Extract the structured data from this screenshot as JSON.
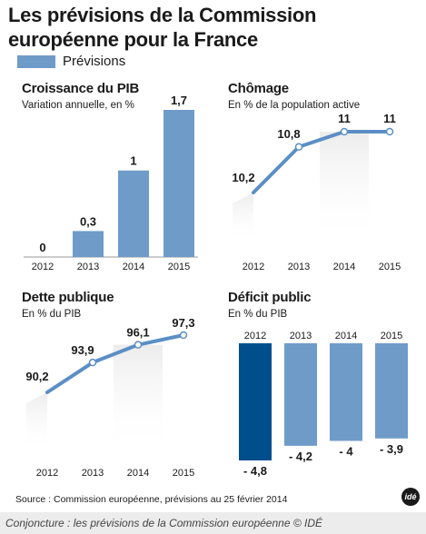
{
  "header": {
    "title": "Les prévisions de la Commission européenne pour la France",
    "legend_label": "Prévisions"
  },
  "colors": {
    "forecast_bar": "#6f9bc9",
    "line": "#5b8ec5",
    "current_bar": "#004f8c",
    "shade": "#ececec"
  },
  "chart_data": [
    {
      "type": "bar",
      "title": "Croissance du PIB",
      "subtitle": "Variation annuelle, en %",
      "categories": [
        "2012",
        "2013",
        "2014",
        "2015"
      ],
      "values": [
        0,
        0.3,
        1,
        1.7
      ],
      "value_labels": [
        "0",
        "0,3",
        "1",
        "1,7"
      ],
      "forecast": [
        false,
        true,
        true,
        true
      ],
      "ylim": [
        0,
        1.7
      ]
    },
    {
      "type": "line",
      "title": "Chômage",
      "subtitle": "En % de la population active",
      "categories": [
        "2012",
        "2013",
        "2014",
        "2015"
      ],
      "values": [
        10.2,
        10.8,
        11,
        11
      ],
      "value_labels": [
        "10,2",
        "10,8",
        "11",
        "11"
      ],
      "forecast": [
        false,
        true,
        true,
        true
      ],
      "ylim": [
        9.5,
        11.25
      ]
    },
    {
      "type": "line",
      "title": "Dette publique",
      "subtitle": "En % du PIB",
      "categories": [
        "2012",
        "2013",
        "2014",
        "2015"
      ],
      "values": [
        90.2,
        93.9,
        96.1,
        97.3
      ],
      "value_labels": [
        "90,2",
        "93,9",
        "96,1",
        "97,3"
      ],
      "forecast": [
        false,
        true,
        true,
        true
      ],
      "ylim": [
        85,
        99
      ]
    },
    {
      "type": "bar",
      "title": "Déficit public",
      "subtitle": "En % du PIB",
      "categories": [
        "2012",
        "2013",
        "2014",
        "2015"
      ],
      "values": [
        -4.8,
        -4.2,
        -4,
        -3.9
      ],
      "value_labels": [
        "- 4,8",
        "- 4,2",
        "- 4",
        "- 3,9"
      ],
      "forecast": [
        false,
        true,
        true,
        true
      ],
      "ylim": [
        -4.8,
        0
      ]
    }
  ],
  "footer": {
    "source": "Source : Commission européenne, prévisions au 25 février 2014",
    "logo_text": "idé",
    "caption": "Conjoncture : les prévisions de la Commission européenne © IDÉ"
  }
}
